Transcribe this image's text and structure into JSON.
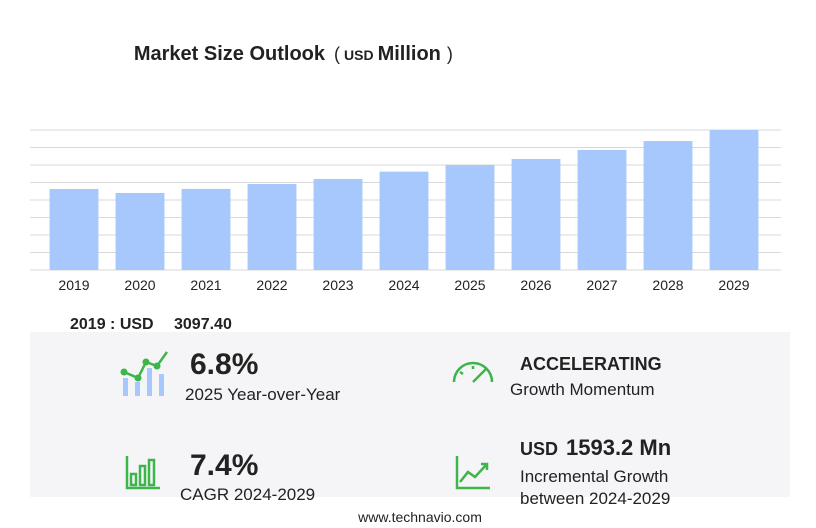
{
  "chart_data": {
    "type": "bar",
    "title": "Market Size Outlook",
    "unit_open": "(",
    "unit_currency": "USD",
    "unit_name": "Million",
    "unit_close": ")",
    "categories": [
      "2019",
      "2020",
      "2021",
      "2022",
      "2023",
      "2024",
      "2025",
      "2026",
      "2027",
      "2028",
      "2029"
    ],
    "values": [
      3097.4,
      2945,
      3100,
      3289,
      3480,
      3760,
      4016,
      4245,
      4589,
      4933,
      5353
    ],
    "color": "#a7c8fd",
    "ylim": [
      0,
      5353
    ],
    "grid": true
  },
  "summary": {
    "base_label": "2019 : USD",
    "base_value": "3097.40",
    "yoy_value": "6.8%",
    "yoy_label": "2025 Year-over-Year",
    "momentum_value": "ACCELERATING",
    "momentum_label": "Growth Momentum",
    "cagr_value": "7.4%",
    "cagr_label": "CAGR 2024-2029",
    "incremental_currency": "USD",
    "incremental_value": "1593.2 Mn",
    "incremental_label_1": "Incremental Growth",
    "incremental_label_2": "between 2024-2029",
    "footer": "www.technavio.com"
  }
}
